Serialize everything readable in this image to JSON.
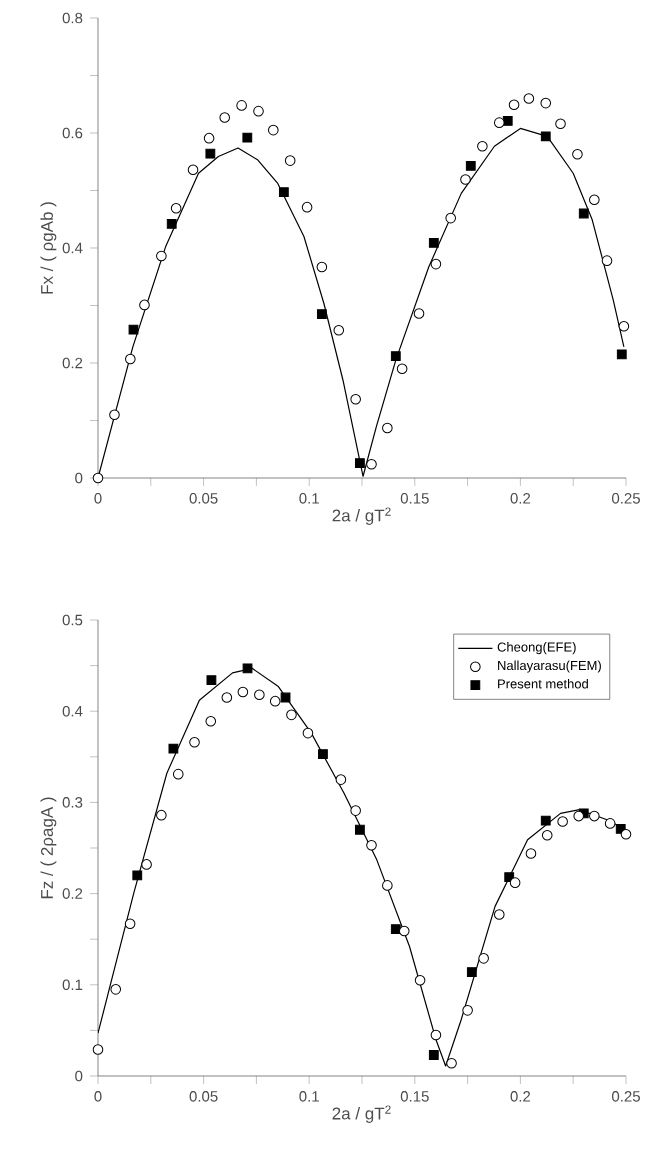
{
  "chart_data": [
    {
      "type": "line",
      "xlabel": "2a / gT$^{2}$",
      "ylabel": "Fx / ( ρgAb )",
      "xlim": [
        0,
        0.25
      ],
      "ylim": [
        0,
        0.8
      ],
      "xticks": [
        0,
        0.05,
        0.1,
        0.15,
        0.2,
        0.25
      ],
      "yticks": [
        0,
        0.2,
        0.4,
        0.6,
        0.8
      ],
      "grid": false,
      "legend": false,
      "series": [
        {
          "color": "#000000",
          "marker": "none",
          "line_style": "solid",
          "x": [
            0,
            0.0165,
            0.032,
            0.0476,
            0.057,
            0.0663,
            0.0757,
            0.085,
            0.0975,
            0.107,
            0.116,
            0.1255,
            0.1317,
            0.141,
            0.1566,
            0.172,
            0.1877,
            0.2,
            0.2127,
            0.225,
            0.234,
            0.244,
            0.249
          ],
          "values": [
            0,
            0.228,
            0.402,
            0.53,
            0.559,
            0.574,
            0.553,
            0.513,
            0.42,
            0.303,
            0.17,
            0.003,
            0.088,
            0.205,
            0.367,
            0.495,
            0.577,
            0.608,
            0.594,
            0.53,
            0.449,
            0.309,
            0.228
          ]
        },
        {
          "type": "scatter",
          "color": "#000000",
          "marker": "circle",
          "x": [
            0,
            0.0078,
            0.0153,
            0.022,
            0.03,
            0.037,
            0.045,
            0.0526,
            0.06,
            0.068,
            0.076,
            0.083,
            0.091,
            0.099,
            0.106,
            0.114,
            0.122,
            0.1295,
            0.137,
            0.144,
            0.152,
            0.16,
            0.167,
            0.174,
            0.182,
            0.19,
            0.197,
            0.204,
            0.212,
            0.219,
            0.227,
            0.235,
            0.241,
            0.249
          ],
          "values": [
            0,
            0.11,
            0.207,
            0.301,
            0.386,
            0.469,
            0.536,
            0.591,
            0.627,
            0.648,
            0.638,
            0.605,
            0.552,
            0.471,
            0.367,
            0.257,
            0.137,
            0.024,
            0.087,
            0.19,
            0.286,
            0.372,
            0.452,
            0.519,
            0.577,
            0.618,
            0.649,
            0.66,
            0.652,
            0.616,
            0.563,
            0.484,
            0.378,
            0.264
          ]
        },
        {
          "type": "scatter",
          "color": "#000000",
          "marker": "square",
          "x": [
            0.0168,
            0.0349,
            0.0532,
            0.0707,
            0.088,
            0.106,
            0.124,
            0.141,
            0.159,
            0.1765,
            0.194,
            0.212,
            0.23,
            0.248
          ],
          "values": [
            0.258,
            0.442,
            0.564,
            0.592,
            0.497,
            0.285,
            0.026,
            0.212,
            0.409,
            0.543,
            0.621,
            0.594,
            0.46,
            0.215
          ]
        }
      ]
    },
    {
      "type": "line",
      "xlabel": "2a / gT$^{2}$",
      "ylabel": "Fz / ( 2ρagA )",
      "xlim": [
        0,
        0.25
      ],
      "ylim": [
        0,
        0.5
      ],
      "xticks": [
        0,
        0.05,
        0.1,
        0.15,
        0.2,
        0.25
      ],
      "yticks": [
        0,
        0.1,
        0.2,
        0.3,
        0.4,
        0.5
      ],
      "grid": false,
      "legend": "top right",
      "series": [
        {
          "name": "Cheong(EFE)",
          "color": "#000000",
          "marker": "none",
          "line_style": "solid",
          "x": [
            0,
            0.017,
            0.0326,
            0.048,
            0.0637,
            0.073,
            0.0854,
            0.101,
            0.1165,
            0.132,
            0.1475,
            0.16,
            0.1646,
            0.172,
            0.188,
            0.2034,
            0.219,
            0.228,
            0.241,
            0.25
          ],
          "values": [
            0.047,
            0.201,
            0.332,
            0.412,
            0.442,
            0.447,
            0.427,
            0.376,
            0.31,
            0.237,
            0.142,
            0.04,
            0.011,
            0.062,
            0.186,
            0.259,
            0.288,
            0.292,
            0.281,
            0.27
          ]
        },
        {
          "name": "Nallayarasu(FEM)",
          "type": "scatter",
          "color": "#000000",
          "marker": "circle",
          "x": [
            0,
            0.0084,
            0.0152,
            0.023,
            0.03,
            0.038,
            0.0457,
            0.0534,
            0.061,
            0.0686,
            0.0764,
            0.0839,
            0.0916,
            0.0994,
            0.115,
            0.122,
            0.1295,
            0.137,
            0.145,
            0.1525,
            0.16,
            0.1674,
            0.175,
            0.1826,
            0.19,
            0.1975,
            0.205,
            0.2127,
            0.22,
            0.2276,
            0.235,
            0.2425,
            0.25
          ],
          "values": [
            0.029,
            0.095,
            0.167,
            0.232,
            0.286,
            0.331,
            0.366,
            0.389,
            0.415,
            0.421,
            0.418,
            0.411,
            0.396,
            0.376,
            0.325,
            0.291,
            0.253,
            0.209,
            0.159,
            0.105,
            0.045,
            0.014,
            0.072,
            0.129,
            0.177,
            0.212,
            0.244,
            0.264,
            0.279,
            0.285,
            0.285,
            0.277,
            0.265
          ]
        },
        {
          "name": "Present method",
          "type": "scatter",
          "color": "#000000",
          "marker": "square",
          "x": [
            0.0186,
            0.0357,
            0.0537,
            0.0708,
            0.0888,
            0.1065,
            0.124,
            0.141,
            0.159,
            0.177,
            0.1947,
            0.212,
            0.23,
            0.2475
          ],
          "values": [
            0.22,
            0.359,
            0.434,
            0.447,
            0.415,
            0.353,
            0.27,
            0.161,
            0.023,
            0.114,
            0.218,
            0.28,
            0.288,
            0.271
          ]
        }
      ]
    }
  ]
}
